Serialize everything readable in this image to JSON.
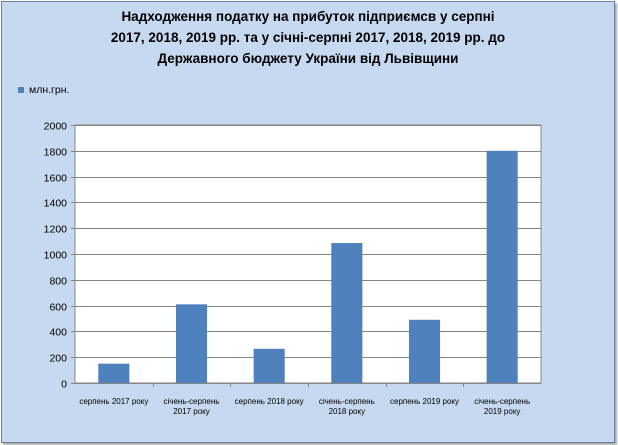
{
  "title_lines": [
    "Надходження податку на прибуток підприємсв у серпні",
    "2017, 2018, 2019 рр. та у січні-серпні 2017, 2018, 2019 рр.  до",
    "Державного бюджету України від Львівщини"
  ],
  "colors": {
    "background": "#c6d9f0",
    "plot_area": "#ffffff",
    "bar": "#4f81bd",
    "gridline": "#868686"
  },
  "chart_data": {
    "type": "bar",
    "title": "Надходження податку на прибуток підприємсв у серпні 2017, 2018, 2019 рр. та у січні-серпні 2017, 2018, 2019 рр.  до Державного бюджету України від Львівщини",
    "categories": [
      [
        "серпень 2017 року"
      ],
      [
        "січень-серпень",
        "2017 року"
      ],
      [
        "серпень 2018 року"
      ],
      [
        "січень-серпень",
        "2018 року"
      ],
      [
        "серпень 2019 року"
      ],
      [
        "січень-серпень",
        "2019 року"
      ]
    ],
    "series": [
      {
        "name": "млн.грн.",
        "values": [
          150,
          610,
          265,
          1085,
          490,
          1800
        ]
      }
    ],
    "xlabel": "",
    "ylabel": "",
    "ylim": [
      0,
      2000
    ],
    "yticks": [
      0,
      200,
      400,
      600,
      800,
      1000,
      1200,
      1400,
      1600,
      1800,
      2000
    ],
    "grid": true,
    "legend_position": "top-left"
  }
}
